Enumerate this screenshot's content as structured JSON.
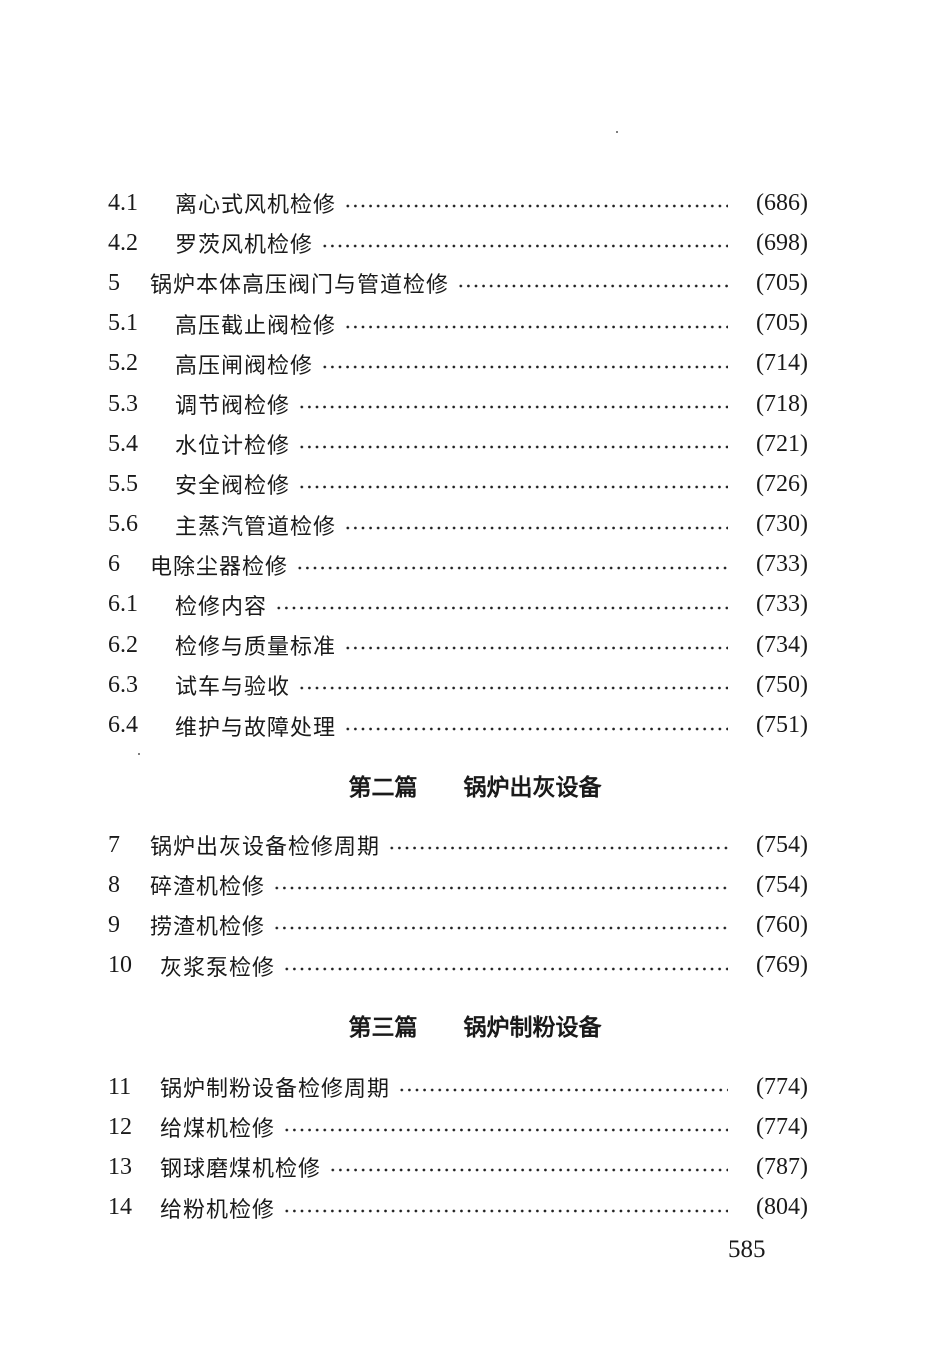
{
  "sections": [
    {
      "entries": [
        {
          "num": "4.1",
          "title": "离心式风机检修",
          "page": "(686)"
        },
        {
          "num": "4.2",
          "title": "罗茨风机检修",
          "page": "(698)"
        },
        {
          "num": "5",
          "title": "锅炉本体高压阀门与管道检修",
          "page": "(705)"
        },
        {
          "num": "5.1",
          "title": "高压截止阀检修",
          "page": "(705)"
        },
        {
          "num": "5.2",
          "title": "高压闸阀检修",
          "page": "(714)"
        },
        {
          "num": "5.3",
          "title": "调节阀检修",
          "page": "(718)"
        },
        {
          "num": "5.4",
          "title": "水位计检修",
          "page": "(721)"
        },
        {
          "num": "5.5",
          "title": "安全阀检修",
          "page": "(726)"
        },
        {
          "num": "5.6",
          "title": "主蒸汽管道检修",
          "page": "(730)"
        },
        {
          "num": "6",
          "title": "电除尘器检修",
          "page": "(733)"
        },
        {
          "num": "6.1",
          "title": "检修内容",
          "page": "(733)"
        },
        {
          "num": "6.2",
          "title": "检修与质量标准",
          "page": "(734)"
        },
        {
          "num": "6.3",
          "title": "试车与验收",
          "page": "(750)"
        },
        {
          "num": "6.4",
          "title": "维护与故障处理",
          "page": "(751)"
        }
      ]
    },
    {
      "heading": {
        "part": "第二篇",
        "title": "锅炉出灰设备"
      },
      "entries": [
        {
          "num": "7",
          "title": "锅炉出灰设备检修周期",
          "page": "(754)"
        },
        {
          "num": "8",
          "title": "碎渣机检修",
          "page": "(754)"
        },
        {
          "num": "9",
          "title": "捞渣机检修",
          "page": "(760)"
        },
        {
          "num": "10",
          "title": "灰浆泵检修",
          "page": "(769)"
        }
      ]
    },
    {
      "heading": {
        "part": "第三篇",
        "title": "锅炉制粉设备"
      },
      "entries": [
        {
          "num": "11",
          "title": "锅炉制粉设备检修周期",
          "page": "(774)"
        },
        {
          "num": "12",
          "title": "给煤机检修",
          "page": "(774)"
        },
        {
          "num": "13",
          "title": "钢球磨煤机检修",
          "page": "(787)"
        },
        {
          "num": "14",
          "title": "给粉机检修",
          "page": "(804)"
        }
      ]
    }
  ],
  "page_number": "585"
}
